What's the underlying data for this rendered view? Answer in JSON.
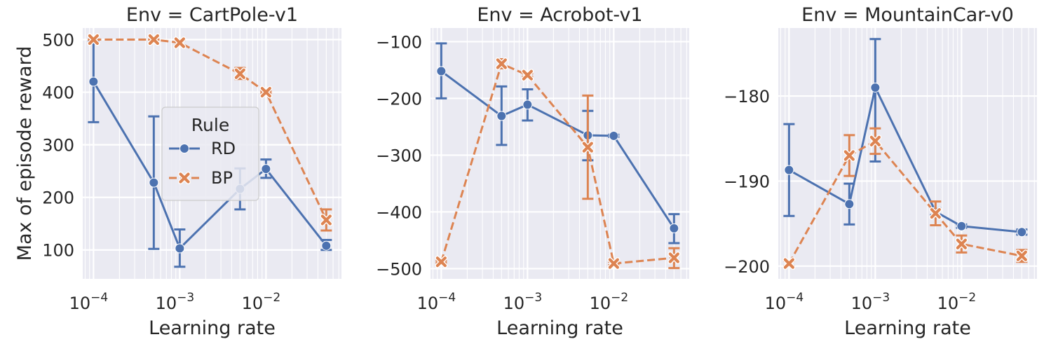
{
  "colors": {
    "plot_bg": "#eaeaf2",
    "grid": "#ffffff",
    "RD": "#4c72b0",
    "BP": "#dd8452"
  },
  "legend": {
    "title": "Rule",
    "entries": [
      {
        "series": "RD",
        "label": "RD",
        "marker": "circle",
        "dash": "solid"
      },
      {
        "series": "BP",
        "label": "BP",
        "marker": "x",
        "dash": "dashed"
      }
    ]
  },
  "chart_data": [
    {
      "type": "line",
      "title": "Env = CartPole-v1",
      "xlabel": "Learning rate",
      "ylabel": "Max of episode reward",
      "xscale": "log",
      "xlim": [
        7.5e-05,
        0.075
      ],
      "ylim": [
        45,
        522
      ],
      "yticks": [
        100,
        200,
        300,
        400,
        500
      ],
      "x": [
        0.0001,
        0.0005,
        0.001,
        0.005,
        0.01,
        0.05
      ],
      "grid": true,
      "legend_position": "center",
      "series": [
        {
          "name": "RD",
          "values": [
            420,
            228,
            103,
            216,
            254,
            108
          ],
          "err_low": [
            343,
            102,
            68,
            177,
            237,
            100
          ],
          "err_high": [
            497,
            354,
            139,
            255,
            272,
            119
          ]
        },
        {
          "name": "BP",
          "values": [
            500,
            500,
            494,
            435,
            400,
            157
          ],
          "err_low": [
            500,
            500,
            489,
            425,
            398,
            137
          ],
          "err_high": [
            500,
            500,
            499,
            446,
            402,
            177
          ]
        }
      ]
    },
    {
      "type": "line",
      "title": "Env = Acrobot-v1",
      "xlabel": "Learning rate",
      "xscale": "log",
      "xlim": [
        7.5e-05,
        0.075
      ],
      "ylim": [
        -518,
        -76
      ],
      "yticks": [
        -500,
        -400,
        -300,
        -200,
        -100
      ],
      "x": [
        0.0001,
        0.0005,
        0.001,
        0.005,
        0.01,
        0.05
      ],
      "grid": true,
      "series": [
        {
          "name": "RD",
          "values": [
            -152,
            -231,
            -211,
            -265,
            -266,
            -429
          ],
          "err_low": [
            -200,
            -282,
            -239,
            -309,
            -268,
            -455
          ],
          "err_high": [
            -103,
            -179,
            -184,
            -222,
            -264,
            -404
          ]
        },
        {
          "name": "BP",
          "values": [
            -488,
            -139,
            -159,
            -286,
            -491,
            -481
          ],
          "err_low": [
            -490,
            -147,
            -162,
            -377,
            -494,
            -499
          ],
          "err_high": [
            -486,
            -131,
            -156,
            -195,
            -488,
            -464
          ]
        }
      ]
    },
    {
      "type": "line",
      "title": "Env = MountainCar-v0",
      "xlabel": "Learning rate",
      "xscale": "log",
      "xlim": [
        7.5e-05,
        0.075
      ],
      "ylim": [
        -201.5,
        -172
      ],
      "yticks": [
        -200,
        -190,
        -180
      ],
      "x": [
        0.0001,
        0.0005,
        0.001,
        0.005,
        0.01,
        0.05
      ],
      "grid": true,
      "series": [
        {
          "name": "RD",
          "values": [
            -188.7,
            -192.7,
            -179.0,
            -193.6,
            -195.3,
            -196.0
          ],
          "err_low": [
            -194.1,
            -195.1,
            -187.7,
            -194.0,
            -195.5,
            -196.3
          ],
          "err_high": [
            -183.3,
            -190.3,
            -173.3,
            -193.2,
            -195.1,
            -195.7
          ]
        },
        {
          "name": "BP",
          "values": [
            -199.7,
            -187.0,
            -185.3,
            -193.8,
            -197.4,
            -198.8
          ],
          "err_low": [
            -200.0,
            -189.4,
            -186.8,
            -195.2,
            -198.4,
            -199.5
          ],
          "err_high": [
            -199.4,
            -184.6,
            -183.8,
            -192.4,
            -196.4,
            -198.1
          ]
        }
      ]
    }
  ]
}
